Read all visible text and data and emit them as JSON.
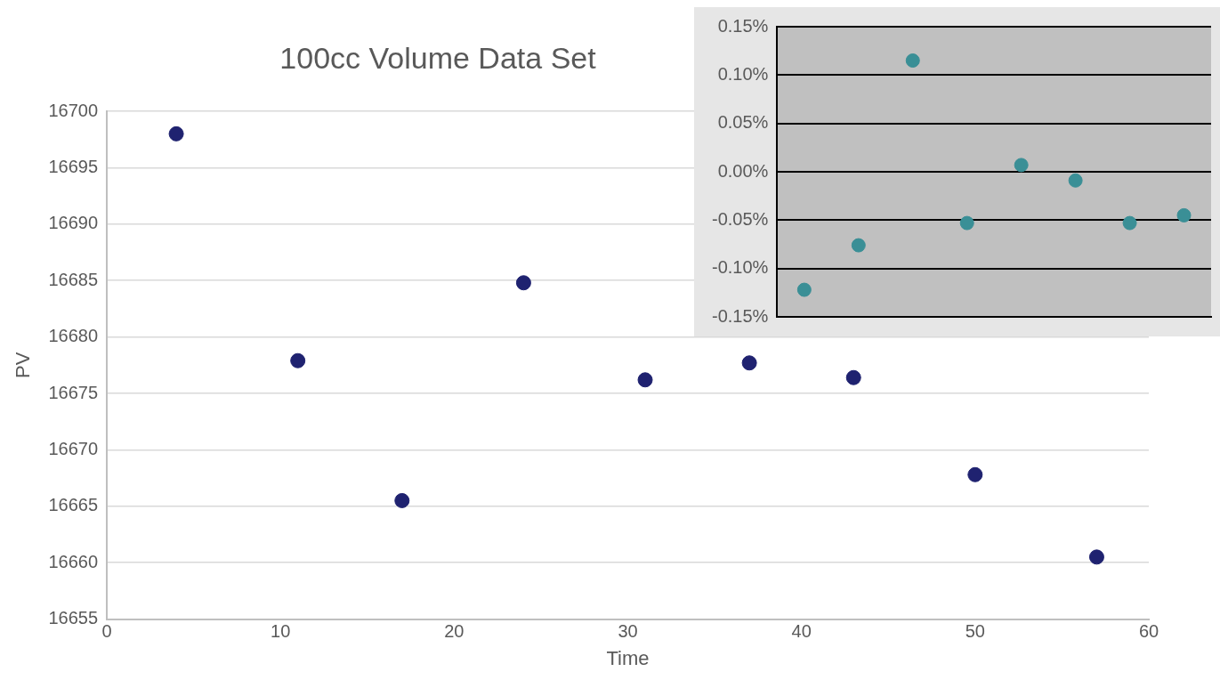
{
  "chart_data": [
    {
      "type": "scatter",
      "title": "100cc Volume Data Set",
      "xlabel": "Time",
      "ylabel": "PV",
      "x": [
        4,
        11,
        17,
        24,
        31,
        37,
        43,
        50,
        57
      ],
      "series": [
        {
          "color": "#1f2270",
          "values": [
            16698,
            16677.9,
            16665.5,
            16684.8,
            16676.2,
            16677.7,
            16676.4,
            16667.8,
            16660.5
          ]
        }
      ],
      "xlim": [
        0,
        60
      ],
      "xticks": [
        0,
        10,
        20,
        30,
        40,
        50,
        60
      ],
      "ylim": [
        16655,
        16700
      ],
      "yticks": [
        16655,
        16660,
        16665,
        16670,
        16675,
        16680,
        16685,
        16690,
        16695,
        16700
      ],
      "grid": "y",
      "marker": "circle",
      "legend": false
    },
    {
      "type": "scatter",
      "categories": [
        null,
        null,
        null,
        null,
        null,
        null,
        null,
        null
      ],
      "series": [
        {
          "color": "#3a8f96",
          "values": [
            -0.122,
            -0.076,
            0.115,
            -0.053,
            0.007,
            -0.009,
            -0.053,
            -0.045
          ]
        }
      ],
      "ylim": [
        -0.15,
        0.15
      ],
      "yticks": [
        {
          "value": -0.15,
          "label": "-0.15%"
        },
        {
          "value": -0.1,
          "label": "-0.10%"
        },
        {
          "value": -0.05,
          "label": "-0.05%"
        },
        {
          "value": 0,
          "label": "0.00%"
        },
        {
          "value": 0.05,
          "label": "0.05%"
        },
        {
          "value": 0.1,
          "label": "0.10%"
        },
        {
          "value": 0.15,
          "label": "0.15%"
        }
      ],
      "grid": "y",
      "marker": "circle",
      "legend": false,
      "tick_labels": "y"
    }
  ]
}
